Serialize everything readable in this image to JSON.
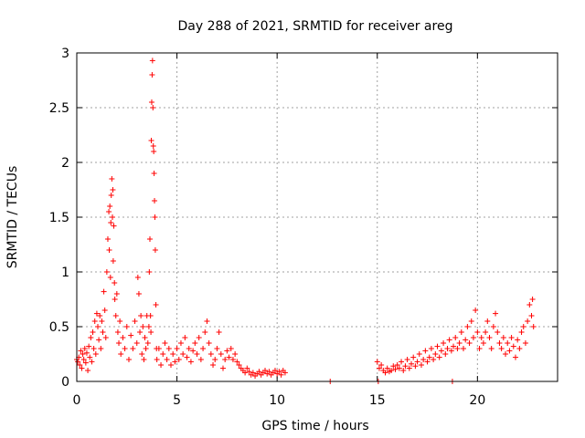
{
  "chart_data": {
    "type": "scatter",
    "title": "Day 288 of 2021, SRMTID for receiver areg",
    "xlabel": "GPS time / hours",
    "ylabel": "SRMTID / TECUs",
    "xlim": [
      0,
      24
    ],
    "ylim": [
      0,
      3
    ],
    "xticks": [
      0,
      5,
      10,
      15,
      20
    ],
    "yticks": [
      0,
      0.5,
      1,
      1.5,
      2,
      2.5,
      3
    ],
    "xtick_labels": [
      "0",
      "5",
      "10",
      "15",
      "20"
    ],
    "ytick_labels": [
      "0",
      "0.5",
      "1",
      "1.5",
      "2",
      "2.5",
      "3"
    ],
    "grid": true,
    "marker": "+",
    "series": [
      {
        "name": "areg",
        "color": "#ff0000",
        "points": [
          [
            0.0,
            0.2
          ],
          [
            0.05,
            0.18
          ],
          [
            0.1,
            0.22
          ],
          [
            0.15,
            0.15
          ],
          [
            0.2,
            0.28
          ],
          [
            0.25,
            0.12
          ],
          [
            0.3,
            0.25
          ],
          [
            0.35,
            0.2
          ],
          [
            0.4,
            0.3
          ],
          [
            0.45,
            0.17
          ],
          [
            0.5,
            0.26
          ],
          [
            0.55,
            0.1
          ],
          [
            0.6,
            0.32
          ],
          [
            0.65,
            0.22
          ],
          [
            0.7,
            0.4
          ],
          [
            0.75,
            0.18
          ],
          [
            0.8,
            0.45
          ],
          [
            0.85,
            0.3
          ],
          [
            0.9,
            0.55
          ],
          [
            0.95,
            0.25
          ],
          [
            1.0,
            0.62
          ],
          [
            1.05,
            0.5
          ],
          [
            1.1,
            0.38
          ],
          [
            1.15,
            0.6
          ],
          [
            1.2,
            0.3
          ],
          [
            1.25,
            0.55
          ],
          [
            1.3,
            0.45
          ],
          [
            1.35,
            0.82
          ],
          [
            1.4,
            0.65
          ],
          [
            1.45,
            0.4
          ],
          [
            1.5,
            1.0
          ],
          [
            1.55,
            1.3
          ],
          [
            1.6,
            1.55
          ],
          [
            1.62,
            1.2
          ],
          [
            1.65,
            1.6
          ],
          [
            1.68,
            0.95
          ],
          [
            1.7,
            1.45
          ],
          [
            1.72,
            1.7
          ],
          [
            1.75,
            1.85
          ],
          [
            1.78,
            1.5
          ],
          [
            1.8,
            1.75
          ],
          [
            1.82,
            1.1
          ],
          [
            1.85,
            1.42
          ],
          [
            1.88,
            0.9
          ],
          [
            1.9,
            0.75
          ],
          [
            1.95,
            0.6
          ],
          [
            2.0,
            0.8
          ],
          [
            2.05,
            0.45
          ],
          [
            2.1,
            0.35
          ],
          [
            2.15,
            0.55
          ],
          [
            2.2,
            0.25
          ],
          [
            2.3,
            0.4
          ],
          [
            2.4,
            0.3
          ],
          [
            2.5,
            0.5
          ],
          [
            2.6,
            0.2
          ],
          [
            2.7,
            0.42
          ],
          [
            2.8,
            0.3
          ],
          [
            2.9,
            0.55
          ],
          [
            3.0,
            0.35
          ],
          [
            3.05,
            0.95
          ],
          [
            3.1,
            0.8
          ],
          [
            3.15,
            0.45
          ],
          [
            3.2,
            0.6
          ],
          [
            3.25,
            0.25
          ],
          [
            3.3,
            0.5
          ],
          [
            3.35,
            0.2
          ],
          [
            3.4,
            0.4
          ],
          [
            3.45,
            0.3
          ],
          [
            3.5,
            0.6
          ],
          [
            3.55,
            0.35
          ],
          [
            3.6,
            0.5
          ],
          [
            3.62,
            1.0
          ],
          [
            3.65,
            1.3
          ],
          [
            3.68,
            0.6
          ],
          [
            3.7,
            0.45
          ],
          [
            3.72,
            2.2
          ],
          [
            3.74,
            2.55
          ],
          [
            3.76,
            2.8
          ],
          [
            3.78,
            2.93
          ],
          [
            3.8,
            2.5
          ],
          [
            3.82,
            2.15
          ],
          [
            3.84,
            2.1
          ],
          [
            3.86,
            1.9
          ],
          [
            3.88,
            1.65
          ],
          [
            3.9,
            1.5
          ],
          [
            3.92,
            1.2
          ],
          [
            3.95,
            0.7
          ],
          [
            3.98,
            0.3
          ],
          [
            4.0,
            0.2
          ],
          [
            4.1,
            0.3
          ],
          [
            4.2,
            0.15
          ],
          [
            4.3,
            0.25
          ],
          [
            4.4,
            0.35
          ],
          [
            4.5,
            0.2
          ],
          [
            4.6,
            0.3
          ],
          [
            4.7,
            0.15
          ],
          [
            4.8,
            0.25
          ],
          [
            4.9,
            0.18
          ],
          [
            5.0,
            0.3
          ],
          [
            5.1,
            0.2
          ],
          [
            5.2,
            0.35
          ],
          [
            5.3,
            0.25
          ],
          [
            5.4,
            0.4
          ],
          [
            5.5,
            0.22
          ],
          [
            5.6,
            0.3
          ],
          [
            5.7,
            0.18
          ],
          [
            5.8,
            0.28
          ],
          [
            5.9,
            0.35
          ],
          [
            6.0,
            0.25
          ],
          [
            6.1,
            0.4
          ],
          [
            6.2,
            0.2
          ],
          [
            6.3,
            0.3
          ],
          [
            6.4,
            0.45
          ],
          [
            6.5,
            0.55
          ],
          [
            6.6,
            0.35
          ],
          [
            6.7,
            0.25
          ],
          [
            6.8,
            0.15
          ],
          [
            6.9,
            0.2
          ],
          [
            7.0,
            0.3
          ],
          [
            7.1,
            0.45
          ],
          [
            7.2,
            0.25
          ],
          [
            7.3,
            0.12
          ],
          [
            7.4,
            0.2
          ],
          [
            7.5,
            0.28
          ],
          [
            7.6,
            0.22
          ],
          [
            7.7,
            0.3
          ],
          [
            7.8,
            0.2
          ],
          [
            7.9,
            0.25
          ],
          [
            8.0,
            0.18
          ],
          [
            8.1,
            0.15
          ],
          [
            8.2,
            0.12
          ],
          [
            8.3,
            0.1
          ],
          [
            8.4,
            0.08
          ],
          [
            8.5,
            0.12
          ],
          [
            8.6,
            0.09
          ],
          [
            8.7,
            0.06
          ],
          [
            8.8,
            0.08
          ],
          [
            8.9,
            0.05
          ],
          [
            9.0,
            0.07
          ],
          [
            9.1,
            0.09
          ],
          [
            9.2,
            0.06
          ],
          [
            9.3,
            0.08
          ],
          [
            9.4,
            0.1
          ],
          [
            9.5,
            0.07
          ],
          [
            9.6,
            0.09
          ],
          [
            9.7,
            0.06
          ],
          [
            9.8,
            0.08
          ],
          [
            9.9,
            0.1
          ],
          [
            10.0,
            0.07
          ],
          [
            10.1,
            0.09
          ],
          [
            10.2,
            0.06
          ],
          [
            10.3,
            0.1
          ],
          [
            10.4,
            0.08
          ],
          [
            12.65,
            0.0
          ],
          [
            15.05,
            0.0
          ],
          [
            18.75,
            0.0
          ],
          [
            15.0,
            0.18
          ],
          [
            15.1,
            0.12
          ],
          [
            15.2,
            0.15
          ],
          [
            15.3,
            0.1
          ],
          [
            15.4,
            0.08
          ],
          [
            15.5,
            0.12
          ],
          [
            15.6,
            0.09
          ],
          [
            15.7,
            0.1
          ],
          [
            15.8,
            0.14
          ],
          [
            15.9,
            0.11
          ],
          [
            16.0,
            0.15
          ],
          [
            16.1,
            0.12
          ],
          [
            16.2,
            0.18
          ],
          [
            16.3,
            0.1
          ],
          [
            16.4,
            0.14
          ],
          [
            16.5,
            0.2
          ],
          [
            16.6,
            0.12
          ],
          [
            16.7,
            0.16
          ],
          [
            16.8,
            0.22
          ],
          [
            16.9,
            0.14
          ],
          [
            17.0,
            0.18
          ],
          [
            17.1,
            0.25
          ],
          [
            17.2,
            0.15
          ],
          [
            17.3,
            0.2
          ],
          [
            17.4,
            0.28
          ],
          [
            17.5,
            0.18
          ],
          [
            17.6,
            0.22
          ],
          [
            17.7,
            0.3
          ],
          [
            17.8,
            0.2
          ],
          [
            17.9,
            0.25
          ],
          [
            18.0,
            0.32
          ],
          [
            18.1,
            0.22
          ],
          [
            18.2,
            0.28
          ],
          [
            18.3,
            0.35
          ],
          [
            18.4,
            0.25
          ],
          [
            18.5,
            0.3
          ],
          [
            18.6,
            0.38
          ],
          [
            18.7,
            0.28
          ],
          [
            18.8,
            0.32
          ],
          [
            18.9,
            0.4
          ],
          [
            19.0,
            0.3
          ],
          [
            19.1,
            0.35
          ],
          [
            19.2,
            0.45
          ],
          [
            19.3,
            0.3
          ],
          [
            19.4,
            0.38
          ],
          [
            19.5,
            0.5
          ],
          [
            19.6,
            0.35
          ],
          [
            19.7,
            0.55
          ],
          [
            19.8,
            0.4
          ],
          [
            19.9,
            0.65
          ],
          [
            20.0,
            0.45
          ],
          [
            20.1,
            0.3
          ],
          [
            20.2,
            0.4
          ],
          [
            20.3,
            0.35
          ],
          [
            20.4,
            0.45
          ],
          [
            20.5,
            0.55
          ],
          [
            20.6,
            0.4
          ],
          [
            20.7,
            0.3
          ],
          [
            20.8,
            0.5
          ],
          [
            20.9,
            0.62
          ],
          [
            21.0,
            0.45
          ],
          [
            21.1,
            0.35
          ],
          [
            21.2,
            0.3
          ],
          [
            21.3,
            0.4
          ],
          [
            21.4,
            0.25
          ],
          [
            21.5,
            0.35
          ],
          [
            21.6,
            0.28
          ],
          [
            21.7,
            0.4
          ],
          [
            21.8,
            0.32
          ],
          [
            21.9,
            0.22
          ],
          [
            22.0,
            0.38
          ],
          [
            22.1,
            0.3
          ],
          [
            22.2,
            0.45
          ],
          [
            22.3,
            0.5
          ],
          [
            22.4,
            0.35
          ],
          [
            22.5,
            0.55
          ],
          [
            22.6,
            0.7
          ],
          [
            22.7,
            0.6
          ],
          [
            22.75,
            0.75
          ],
          [
            22.8,
            0.5
          ]
        ]
      }
    ]
  }
}
